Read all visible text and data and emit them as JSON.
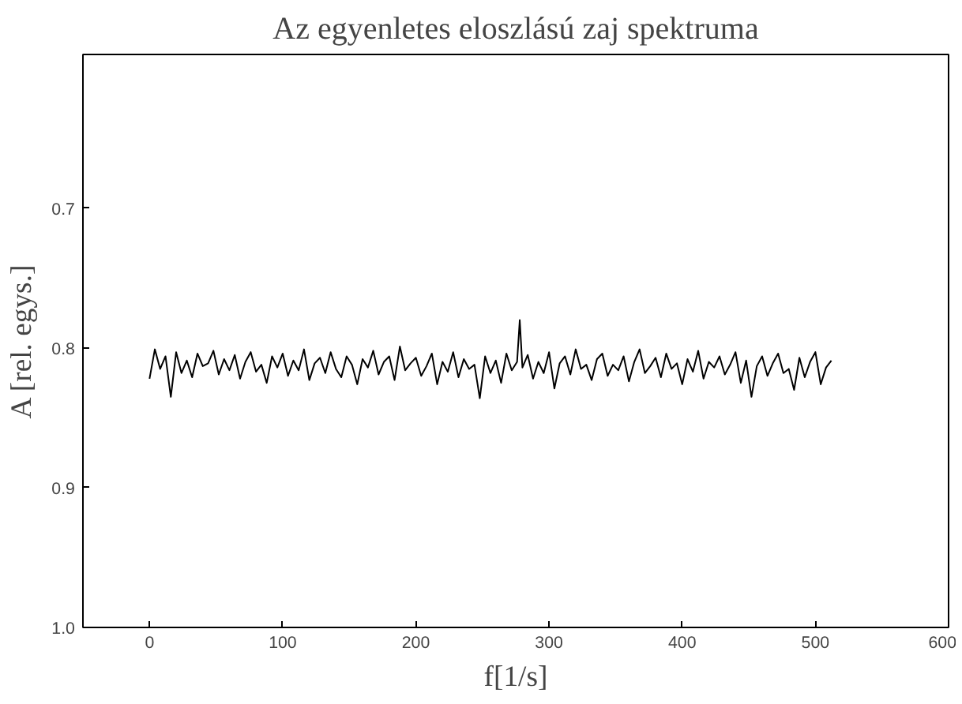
{
  "chart_data": {
    "type": "line",
    "title": "Az egyenletes eloszlású zaj spektruma",
    "xlabel": "f[1/s]",
    "ylabel": "A [rel. egys.]",
    "xlim": [
      -50,
      600
    ],
    "xticks": [
      0,
      100,
      200,
      300,
      400,
      500,
      600
    ],
    "ylim": [
      1.0,
      0.59
    ],
    "yticks": [
      {
        "value": 0.7,
        "label": "0.7"
      },
      {
        "value": 0.8,
        "label": "0.8"
      },
      {
        "value": 0.9,
        "label": "0.9"
      },
      {
        "value": 1.0,
        "label": "1.0"
      }
    ],
    "grid": false,
    "color": "#000000",
    "x": [
      0,
      4,
      8,
      12,
      16,
      20,
      24,
      28,
      32,
      36,
      40,
      44,
      48,
      52,
      56,
      60,
      64,
      68,
      72,
      76,
      80,
      84,
      88,
      92,
      96,
      100,
      104,
      108,
      112,
      116,
      120,
      124,
      128,
      132,
      136,
      140,
      144,
      148,
      152,
      156,
      160,
      164,
      168,
      172,
      176,
      180,
      184,
      188,
      192,
      196,
      200,
      204,
      208,
      212,
      216,
      220,
      224,
      228,
      232,
      236,
      240,
      244,
      248,
      252,
      256,
      260,
      264,
      268,
      272,
      276,
      278,
      280,
      284,
      288,
      292,
      296,
      300,
      304,
      308,
      312,
      316,
      320,
      324,
      328,
      332,
      336,
      340,
      344,
      348,
      352,
      356,
      360,
      364,
      368,
      372,
      376,
      380,
      384,
      388,
      392,
      396,
      400,
      404,
      408,
      412,
      416,
      420,
      424,
      428,
      432,
      436,
      440,
      444,
      448,
      452,
      456,
      460,
      464,
      468,
      472,
      476,
      480,
      484,
      488,
      492,
      496,
      500,
      504,
      508,
      512
    ],
    "values": [
      0.822,
      0.801,
      0.815,
      0.806,
      0.835,
      0.803,
      0.818,
      0.809,
      0.821,
      0.804,
      0.813,
      0.811,
      0.802,
      0.819,
      0.808,
      0.816,
      0.805,
      0.822,
      0.81,
      0.803,
      0.817,
      0.812,
      0.825,
      0.806,
      0.814,
      0.804,
      0.82,
      0.809,
      0.816,
      0.801,
      0.823,
      0.811,
      0.807,
      0.818,
      0.803,
      0.815,
      0.821,
      0.806,
      0.812,
      0.826,
      0.808,
      0.814,
      0.802,
      0.819,
      0.81,
      0.806,
      0.823,
      0.799,
      0.816,
      0.811,
      0.807,
      0.82,
      0.813,
      0.804,
      0.826,
      0.81,
      0.817,
      0.803,
      0.821,
      0.808,
      0.815,
      0.812,
      0.836,
      0.806,
      0.818,
      0.809,
      0.825,
      0.804,
      0.816,
      0.81,
      0.78,
      0.814,
      0.805,
      0.822,
      0.81,
      0.818,
      0.803,
      0.829,
      0.811,
      0.806,
      0.819,
      0.801,
      0.815,
      0.812,
      0.823,
      0.808,
      0.804,
      0.82,
      0.812,
      0.816,
      0.806,
      0.824,
      0.81,
      0.801,
      0.818,
      0.813,
      0.807,
      0.821,
      0.804,
      0.815,
      0.811,
      0.826,
      0.808,
      0.817,
      0.802,
      0.822,
      0.81,
      0.814,
      0.806,
      0.819,
      0.812,
      0.803,
      0.825,
      0.809,
      0.835,
      0.813,
      0.806,
      0.82,
      0.811,
      0.804,
      0.818,
      0.815,
      0.83,
      0.807,
      0.821,
      0.81,
      0.803,
      0.826,
      0.814,
      0.809
    ]
  }
}
